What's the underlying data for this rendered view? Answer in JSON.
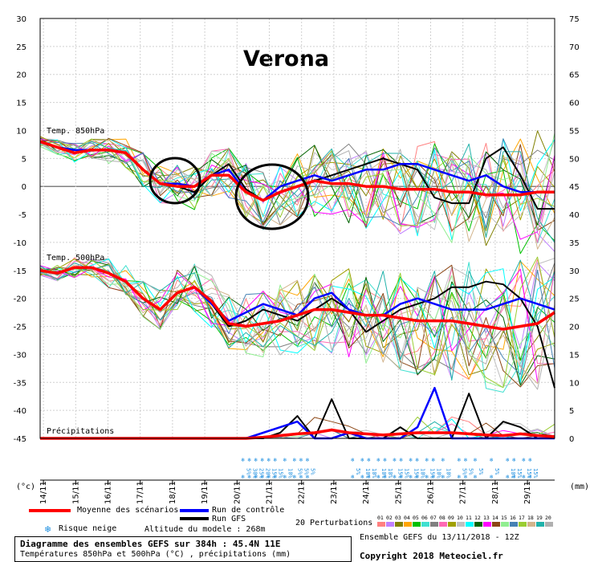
{
  "title": "Verona",
  "chart_data": {
    "type": "line",
    "title": "Verona",
    "x_ticks": [
      "14/11",
      "15/11",
      "16/11",
      "17/11",
      "18/11",
      "19/11",
      "20/11",
      "21/11",
      "22/11",
      "23/11",
      "24/11",
      "25/11",
      "26/11",
      "27/11",
      "28/11",
      "29/11"
    ],
    "left_axis": {
      "label": "(°c)",
      "ticks": [
        "30",
        "25",
        "20",
        "15",
        "10",
        "5",
        "0",
        "-5",
        "-10",
        "-15",
        "-20",
        "-25",
        "-30",
        "-35",
        "-40",
        "-45"
      ],
      "range": [
        -45,
        30
      ]
    },
    "right_axis": {
      "label": "(mm)",
      "ticks": [
        "75",
        "70",
        "65",
        "60",
        "55",
        "50",
        "45",
        "40",
        "35",
        "30",
        "25",
        "20",
        "15",
        "10",
        "5",
        "0"
      ],
      "range": [
        0,
        75
      ]
    },
    "panels": {
      "t850": {
        "label": "Temp. 850hPa",
        "mean": [
          8,
          7,
          6,
          6.5,
          6.5,
          6,
          3,
          0.5,
          0,
          0,
          2,
          2,
          -1,
          -2.5,
          -1,
          0,
          1,
          0.5,
          0.5,
          0,
          0,
          -0.5,
          -0.5,
          -0.5,
          -1,
          -1,
          -1.5,
          -1.5,
          -1.5,
          -1,
          -1
        ],
        "control": [
          8,
          7,
          6.5,
          6.5,
          6.5,
          6,
          3,
          0.5,
          0.5,
          0,
          2,
          3,
          -1,
          -2.5,
          0,
          1,
          2,
          1,
          2,
          3,
          3,
          4,
          4,
          3,
          2,
          1,
          2,
          0,
          -1,
          -1,
          -1
        ],
        "gfs": [
          8,
          7,
          6.5,
          6.5,
          6.5,
          6,
          3,
          0.5,
          0,
          -1,
          2,
          4,
          -0.5,
          -2.5,
          -1,
          0,
          1,
          2,
          3,
          4,
          5,
          4,
          3,
          -2,
          -3,
          -3,
          5,
          7,
          2,
          -4,
          -4
        ]
      },
      "t500": {
        "label": "Temp. 500hPa",
        "mean": [
          -15,
          -15.5,
          -14.5,
          -14.5,
          -15.5,
          -17,
          -20,
          -22,
          -19,
          -18,
          -20.5,
          -24.5,
          -25,
          -24.5,
          -24,
          -23,
          -22,
          -22,
          -22.5,
          -23,
          -23,
          -23.5,
          -24,
          -24,
          -24,
          -24.5,
          -25,
          -25.5,
          -25,
          -24.5,
          -22.5
        ],
        "control": [
          -15,
          -15.5,
          -14.5,
          -14.5,
          -15.5,
          -17,
          -20,
          -22,
          -19,
          -18,
          -21,
          -24,
          -22.5,
          -21,
          -22,
          -23,
          -20,
          -19,
          -22,
          -23,
          -23,
          -21,
          -20,
          -21,
          -22,
          -22,
          -22,
          -21,
          -20,
          -21,
          -22
        ],
        "gfs": [
          -15,
          -15.5,
          -14.5,
          -14.5,
          -15.5,
          -17,
          -20,
          -22,
          -19,
          -18,
          -21,
          -25,
          -24,
          -22,
          -23,
          -24,
          -22,
          -20,
          -22,
          -26,
          -24,
          -22,
          -21,
          -20,
          -18,
          -18,
          -17,
          -17.5,
          -20,
          -25,
          -36
        ]
      },
      "precip": {
        "label": "Précipitations",
        "mean": [
          0,
          0,
          0,
          0,
          0,
          0,
          0,
          0,
          0,
          0,
          0,
          0,
          0,
          0.2,
          0.5,
          0.8,
          1,
          1.5,
          1,
          0.8,
          0.6,
          0.8,
          1,
          1,
          1,
          0.8,
          0.6,
          0.5,
          0.8,
          0.5,
          0.3
        ],
        "control": [
          0,
          0,
          0,
          0,
          0,
          0,
          0,
          0,
          0,
          0,
          0,
          0,
          0,
          1,
          2,
          3,
          0,
          0,
          1,
          0,
          0,
          0,
          2,
          9,
          0,
          0,
          0,
          0,
          0,
          0,
          0
        ],
        "gfs": [
          0,
          0,
          0,
          0,
          0,
          0,
          0,
          0,
          0,
          0,
          0,
          0,
          0,
          0,
          1,
          4,
          0,
          7,
          0,
          0,
          0,
          2,
          0,
          0,
          0,
          8,
          0,
          3,
          2,
          0,
          0
        ]
      }
    },
    "snow_risk": [
      {
        "x": 20.2,
        "pct": "5%"
      },
      {
        "x": 20.4,
        "pct": "30%"
      },
      {
        "x": 20.6,
        "pct": "25%"
      },
      {
        "x": 20.8,
        "pct": "20%"
      },
      {
        "x": 21.0,
        "pct": "15%"
      },
      {
        "x": 21.2,
        "pct": "15%"
      },
      {
        "x": 21.5,
        "pct": "10%"
      },
      {
        "x": 21.8,
        "pct": "5%"
      },
      {
        "x": 22.0,
        "pct": "5%"
      },
      {
        "x": 22.2,
        "pct": "5%"
      },
      {
        "x": 23.6,
        "pct": "5%"
      },
      {
        "x": 23.9,
        "pct": "10%"
      },
      {
        "x": 24.1,
        "pct": "10%"
      },
      {
        "x": 24.4,
        "pct": "10%"
      },
      {
        "x": 24.6,
        "pct": "10%"
      },
      {
        "x": 24.9,
        "pct": "15%"
      },
      {
        "x": 25.1,
        "pct": "15%"
      },
      {
        "x": 25.4,
        "pct": "15%"
      },
      {
        "x": 25.6,
        "pct": "10%"
      },
      {
        "x": 25.9,
        "pct": "15%"
      },
      {
        "x": 26.1,
        "pct": "10%"
      },
      {
        "x": 26.4,
        "pct": "10%"
      },
      {
        "x": 26.9,
        "pct": "5%"
      },
      {
        "x": 27.1,
        "pct": "5%"
      },
      {
        "x": 27.4,
        "pct": "5%"
      },
      {
        "x": 27.9,
        "pct": "5%"
      },
      {
        "x": 28.4,
        "pct": "10%"
      },
      {
        "x": 28.6,
        "pct": "15%"
      },
      {
        "x": 28.9,
        "pct": "15%"
      },
      {
        "x": 29.1,
        "pct": "15%"
      }
    ],
    "legend": {
      "mean": "Moyenne des scénarios",
      "control": "Run de contrôle",
      "gfs": "Run GFS",
      "snow": "Risque neige",
      "altitude": "Altitude du modele : 268m",
      "perturbations": "20 Perturbations",
      "perturbation_ids": [
        "01",
        "02",
        "03",
        "04",
        "05",
        "06",
        "07",
        "08",
        "09",
        "10",
        "11",
        "12",
        "13",
        "14",
        "15",
        "16",
        "17",
        "18",
        "19",
        "20"
      ]
    },
    "colors": {
      "mean": "#ff0000",
      "control": "#0000ff",
      "gfs": "#000000",
      "perturbations": [
        "#ff8080",
        "#c080ff",
        "#808000",
        "#ffa500",
        "#00c000",
        "#40e0d0",
        "#808080",
        "#ff69b4",
        "#a0a000",
        "#c0c0c0",
        "#00ffff",
        "#006400",
        "#ff00ff",
        "#8b4513",
        "#90ee90",
        "#4682b4",
        "#9acd32",
        "#d2b48c",
        "#20b2aa",
        "#b0b0b0"
      ]
    }
  },
  "footer": {
    "line1": "Diagramme des ensembles GEFS sur 384h : 45.4N 11E",
    "line2": "Températures 850hPa et 500hPa (°C) , précipitations (mm)",
    "run": "Ensemble GEFS du 13/11/2018 - 12Z",
    "copyright": "Copyright 2018 Meteociel.fr"
  }
}
